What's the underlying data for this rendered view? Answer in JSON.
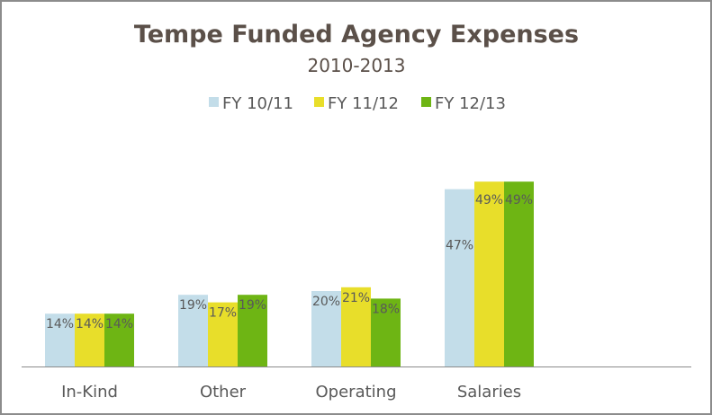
{
  "chart_data": {
    "type": "bar",
    "title": "Tempe Funded Agency Expenses",
    "subtitle": "2010-2013",
    "xlabel": "",
    "ylabel": "",
    "categories": [
      "In-Kind",
      "Other",
      "Operating",
      "Salaries"
    ],
    "series": [
      {
        "name": "FY 10/11",
        "color": "#c3dde9",
        "values": [
          14,
          19,
          20,
          47
        ],
        "labels": [
          "14%",
          "19%",
          "20%",
          "47%"
        ]
      },
      {
        "name": "FY 11/12",
        "color": "#e8de2a",
        "values": [
          14,
          17,
          21,
          49
        ],
        "labels": [
          "14%",
          "17%",
          "21%",
          "49%"
        ]
      },
      {
        "name": "FY 12/13",
        "color": "#6eb514",
        "values": [
          14,
          19,
          18,
          49
        ],
        "labels": [
          "14%",
          "19%",
          "18%",
          "49%"
        ]
      }
    ],
    "ylim": [
      0,
      100
    ],
    "grid": false,
    "legend_position": "top"
  }
}
